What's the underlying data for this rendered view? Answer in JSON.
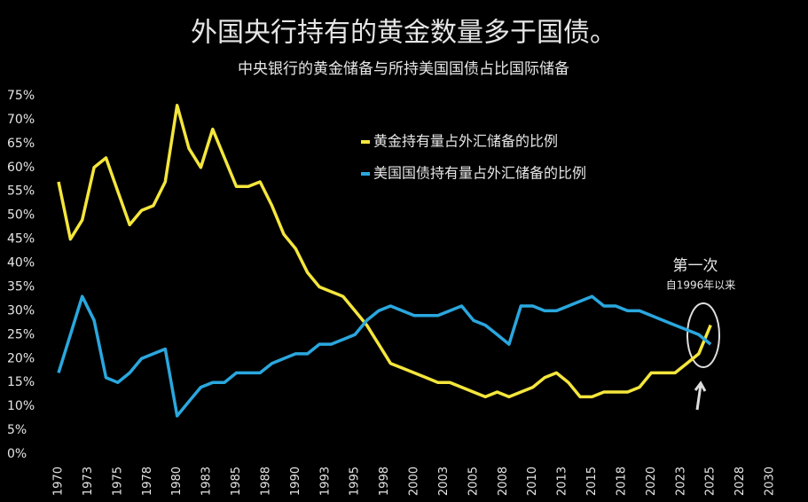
{
  "chart_data": {
    "type": "line",
    "title": "外国央行持有的黄金数量多于国债。",
    "subtitle": "中央银行的黄金储备与所持美国国债占比国际储备",
    "x": [
      1970,
      1971,
      1972,
      1973,
      1974,
      1975,
      1976,
      1977,
      1978,
      1979,
      1980,
      1981,
      1982,
      1983,
      1984,
      1985,
      1986,
      1987,
      1988,
      1989,
      1990,
      1991,
      1992,
      1993,
      1994,
      1995,
      1996,
      1997,
      1998,
      1999,
      2000,
      2001,
      2002,
      2003,
      2004,
      2005,
      2006,
      2007,
      2008,
      2009,
      2010,
      2011,
      2012,
      2013,
      2014,
      2015,
      2016,
      2017,
      2018,
      2019,
      2020,
      2021,
      2022,
      2023,
      2024,
      2025
    ],
    "series": [
      {
        "name": "黄金持有量占外汇储备的比例",
        "color": "#f4e63c",
        "values": [
          57,
          45,
          49,
          60,
          62,
          55,
          48,
          51,
          52,
          57,
          73,
          64,
          60,
          68,
          62,
          56,
          56,
          57,
          52,
          46,
          43,
          38,
          35,
          34,
          33,
          30,
          27,
          23,
          19,
          18,
          17,
          16,
          15,
          15,
          14,
          13,
          12,
          13,
          12,
          13,
          14,
          16,
          17,
          15,
          12,
          12,
          13,
          13,
          13,
          14,
          17,
          17,
          17,
          19,
          21,
          27
        ]
      },
      {
        "name": "美国国债持有量占外汇储备的比例",
        "color": "#2aa7de",
        "values": [
          17,
          25,
          33,
          28,
          16,
          15,
          17,
          20,
          21,
          22,
          8,
          11,
          14,
          15,
          15,
          17,
          17,
          17,
          19,
          20,
          21,
          21,
          23,
          23,
          24,
          25,
          28,
          30,
          31,
          30,
          29,
          29,
          29,
          30,
          31,
          28,
          27,
          25,
          23,
          31,
          31,
          30,
          30,
          31,
          32,
          33,
          31,
          31,
          30,
          30,
          29,
          28,
          27,
          26,
          25,
          23
        ]
      }
    ],
    "xlim": [
      1970,
      2030
    ],
    "xticks": [
      1970,
      {
        "value": 1972.5,
        "label": "1973"
      },
      1975,
      {
        "value": 1977.5,
        "label": "1978"
      },
      1980,
      {
        "value": 1982.5,
        "label": "1983"
      },
      1985,
      {
        "value": 1987.5,
        "label": "1988"
      },
      1990,
      {
        "value": 1992.5,
        "label": "1993"
      },
      1995,
      {
        "value": 1997.5,
        "label": "1998"
      },
      2000,
      {
        "value": 2002.5,
        "label": "2003"
      },
      2005,
      {
        "value": 2007.5,
        "label": "2008"
      },
      2010,
      {
        "value": 2012.5,
        "label": "2013"
      },
      2015,
      {
        "value": 2017.5,
        "label": "2018"
      },
      2020,
      {
        "value": 2022.5,
        "label": "2023"
      },
      2025,
      {
        "value": 2027.5,
        "label": "2028"
      },
      2030
    ],
    "ylim": [
      0,
      75
    ],
    "yticks": [
      {
        "value": 0,
        "label": "0%"
      },
      {
        "value": 5,
        "label": "5%"
      },
      {
        "value": 10,
        "label": "10%"
      },
      {
        "value": 15,
        "label": "15%"
      },
      {
        "value": 20,
        "label": "20%"
      },
      {
        "value": 25,
        "label": "25%"
      },
      {
        "value": 30,
        "label": "30%"
      },
      {
        "value": 35,
        "label": "35%"
      },
      {
        "value": 40,
        "label": "40%"
      },
      {
        "value": 45,
        "label": "45%"
      },
      {
        "value": 50,
        "label": "50%"
      },
      {
        "value": 55,
        "label": "55%"
      },
      {
        "value": 60,
        "label": "60%"
      },
      {
        "value": 65,
        "label": "65%"
      },
      {
        "value": 70,
        "label": "70%"
      },
      {
        "value": 75,
        "label": "75%"
      }
    ],
    "grid": false,
    "legend": "upper center",
    "annotations": [
      "第一次",
      "自1996年以来"
    ]
  }
}
